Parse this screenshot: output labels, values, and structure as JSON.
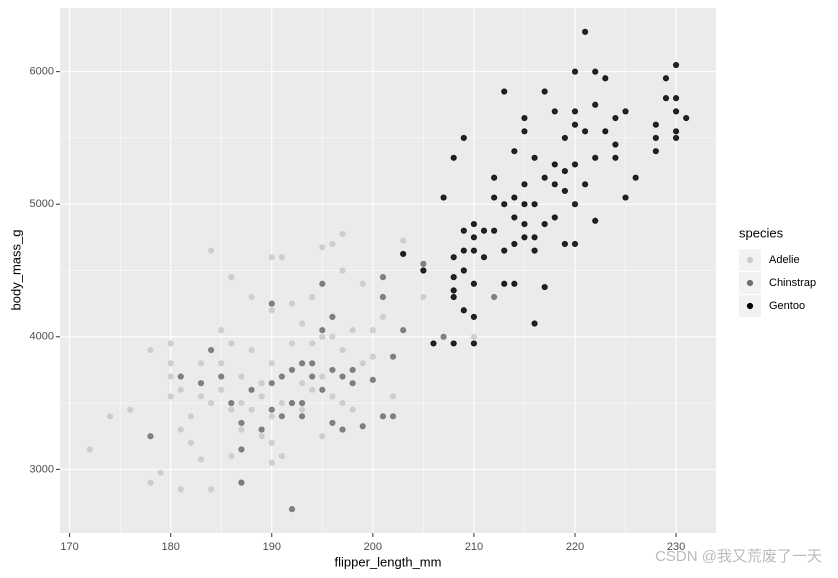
{
  "chart_data": {
    "type": "scatter",
    "x_label": "flipper_length_mm",
    "y_label": "body_mass_g",
    "legend_title": "species",
    "legend_position": "right",
    "grid": true,
    "xlim": [
      169.05,
      233.95
    ],
    "ylim": [
      2520,
      6480
    ],
    "xticks": [
      170,
      180,
      190,
      200,
      210,
      220,
      230
    ],
    "yticks": [
      3000,
      4000,
      5000,
      6000
    ],
    "x_minor_grid": [
      175,
      185,
      195,
      205,
      215,
      225
    ],
    "y_minor_grid": [
      3500,
      4500,
      5500
    ],
    "series": [
      {
        "name": "Adelie",
        "color": "#c9c9c9",
        "x": [
          172,
          174,
          176,
          178,
          178,
          179,
          180,
          180,
          180,
          180,
          181,
          181,
          181,
          182,
          182,
          183,
          183,
          184,
          184,
          184,
          185,
          185,
          186,
          186,
          186,
          187,
          187,
          187,
          187,
          188,
          188,
          189,
          189,
          189,
          190,
          190,
          190,
          190,
          190,
          191,
          191,
          191,
          192,
          192,
          193,
          193,
          193,
          194,
          194,
          194,
          195,
          195,
          195,
          195,
          196,
          196,
          196,
          197,
          197,
          197,
          197,
          198,
          198,
          199,
          199,
          200,
          200,
          201,
          202,
          203,
          205,
          210,
          190,
          188,
          192,
          185,
          183,
          186
        ],
        "values": [
          3150,
          3400,
          3450,
          2900,
          3900,
          2975,
          3550,
          3700,
          3800,
          3950,
          2850,
          3300,
          3600,
          3200,
          3400,
          3075,
          3550,
          2850,
          3500,
          4650,
          3600,
          3800,
          3100,
          3450,
          4450,
          2900,
          3300,
          3500,
          3700,
          3450,
          3900,
          3250,
          3550,
          3650,
          3200,
          3400,
          3800,
          4600,
          3050,
          3100,
          3500,
          4600,
          3500,
          3950,
          3450,
          3650,
          4100,
          3600,
          3950,
          4300,
          3250,
          3700,
          4000,
          4675,
          3550,
          4000,
          4700,
          3500,
          3900,
          4500,
          4775,
          3450,
          4050,
          3800,
          4400,
          3850,
          4050,
          4150,
          3550,
          4725,
          4300,
          4000,
          4200,
          4300,
          4250,
          4050,
          3800,
          3950
        ]
      },
      {
        "name": "Chinstrap",
        "color": "#6e6e6e",
        "x": [
          178,
          181,
          183,
          184,
          185,
          186,
          187,
          187,
          187,
          188,
          189,
          190,
          190,
          190,
          191,
          191,
          192,
          192,
          192,
          193,
          193,
          194,
          195,
          195,
          195,
          196,
          196,
          196,
          197,
          197,
          198,
          198,
          199,
          200,
          201,
          201,
          201,
          202,
          202,
          203,
          205,
          207,
          212,
          193,
          194
        ],
        "values": [
          3250,
          3700,
          3650,
          3900,
          3700,
          3500,
          3350,
          2900,
          3150,
          3600,
          3300,
          3450,
          3650,
          4250,
          3400,
          3700,
          2700,
          3500,
          3750,
          3800,
          3500,
          3700,
          3600,
          4400,
          4050,
          3350,
          3750,
          4150,
          3700,
          3300,
          3650,
          3750,
          3325,
          3675,
          3400,
          4300,
          4450,
          3400,
          3850,
          4050,
          4550,
          4000,
          4300,
          3400,
          3800
        ]
      },
      {
        "name": "Gentoo",
        "color": "#000000",
        "x": [
          203,
          205,
          206,
          207,
          208,
          208,
          208,
          208,
          208,
          208,
          209,
          209,
          209,
          209,
          209,
          210,
          210,
          210,
          210,
          210,
          211,
          211,
          212,
          212,
          213,
          213,
          213,
          213,
          214,
          214,
          214,
          214,
          215,
          215,
          215,
          215,
          215,
          216,
          216,
          216,
          216,
          217,
          217,
          217,
          217,
          218,
          218,
          218,
          219,
          219,
          219,
          219,
          220,
          220,
          220,
          220,
          220,
          221,
          221,
          221,
          222,
          222,
          222,
          222,
          223,
          223,
          224,
          224,
          225,
          225,
          226,
          228,
          228,
          228,
          229,
          229,
          230,
          230,
          230,
          230,
          230,
          231,
          215,
          214,
          216,
          218,
          210,
          212,
          220,
          224
        ],
        "values": [
          4625,
          4500,
          3950,
          5050,
          3950,
          4300,
          4350,
          4450,
          4600,
          5350,
          4200,
          4500,
          4650,
          4800,
          5500,
          3950,
          4150,
          4400,
          4750,
          4850,
          4800,
          4600,
          4800,
          5200,
          4650,
          4400,
          5850,
          5000,
          4400,
          4700,
          4900,
          5400,
          4750,
          4850,
          5000,
          5550,
          5650,
          4100,
          4750,
          5000,
          5350,
          4375,
          4850,
          5200,
          5850,
          4900,
          5300,
          5700,
          4700,
          5100,
          5250,
          5500,
          4700,
          5000,
          5300,
          5600,
          6000,
          5150,
          5550,
          6300,
          4875,
          5350,
          5750,
          6000,
          5550,
          5950,
          5350,
          5650,
          5050,
          5700,
          5200,
          5400,
          5500,
          5600,
          5800,
          5950,
          5500,
          5550,
          5700,
          5800,
          6050,
          5650,
          5150,
          5050,
          4650,
          5150,
          4650,
          5050,
          5700,
          5450
        ]
      }
    ],
    "watermark": "CSDN @我又荒废了一天"
  }
}
